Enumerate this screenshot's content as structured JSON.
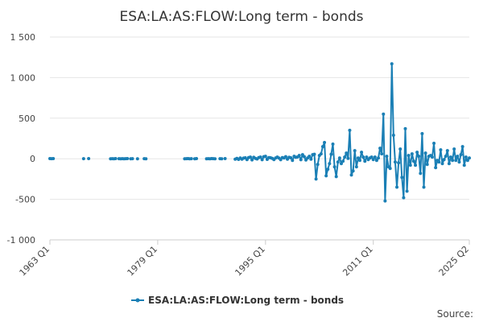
{
  "chart_data": {
    "type": "line",
    "title": "ESA:LA:AS:FLOW:Long term - bonds",
    "source_label": "Source:",
    "ylim": [
      -1000,
      1500
    ],
    "yticks": [
      1500,
      1000,
      500,
      0,
      -500,
      -1000
    ],
    "ytick_labels": [
      "1 500",
      "1 000",
      "500",
      "0",
      "-500",
      "-1 000"
    ],
    "xticks": [
      "1963 Q1",
      "1979 Q1",
      "1995 Q1",
      "2011 Q1",
      "2025 Q2"
    ],
    "x_range": [
      "1963 Q1",
      "2025 Q2"
    ],
    "grid": true,
    "legend_position": "bottom",
    "series_color": "#1a7fb5",
    "series": [
      {
        "name": "ESA:LA:AS:FLOW:Long term - bonds",
        "points": [
          [
            "1963 Q1",
            2
          ],
          [
            "1963 Q2",
            1
          ],
          [
            "1963 Q3",
            2
          ],
          [
            "1968 Q1",
            1
          ],
          [
            "1968 Q4",
            2
          ],
          [
            "1972 Q1",
            0
          ],
          [
            "1972 Q2",
            1
          ],
          [
            "1972 Q3",
            0
          ],
          [
            "1972 Q4",
            2
          ],
          [
            "1973 Q2",
            1
          ],
          [
            "1973 Q3",
            0
          ],
          [
            "1973 Q4",
            1
          ],
          [
            "1974 Q1",
            0
          ],
          [
            "1974 Q2",
            1
          ],
          [
            "1974 Q3",
            2
          ],
          [
            "1975 Q1",
            0
          ],
          [
            "1975 Q2",
            1
          ],
          [
            "1976 Q1",
            0
          ],
          [
            "1977 Q1",
            1
          ],
          [
            "1977 Q2",
            0
          ],
          [
            "1983 Q1",
            0
          ],
          [
            "1983 Q2",
            1
          ],
          [
            "1983 Q3",
            2
          ],
          [
            "1983 Q4",
            0
          ],
          [
            "1984 Q1",
            1
          ],
          [
            "1984 Q3",
            0
          ],
          [
            "1984 Q4",
            2
          ],
          [
            "1986 Q2",
            0
          ],
          [
            "1986 Q3",
            1
          ],
          [
            "1986 Q4",
            0
          ],
          [
            "1987 Q1",
            2
          ],
          [
            "1987 Q2",
            1
          ],
          [
            "1987 Q3",
            0
          ],
          [
            "1988 Q2",
            1
          ],
          [
            "1988 Q3",
            0
          ],
          [
            "1989 Q1",
            2
          ],
          [
            "1990 Q3",
            -5
          ],
          [
            "1990 Q4",
            5
          ],
          [
            "1991 Q1",
            -8
          ],
          [
            "1991 Q2",
            10
          ],
          [
            "1991 Q3",
            -6
          ],
          [
            "1991 Q4",
            8
          ],
          [
            "1992 Q1",
            12
          ],
          [
            "1992 Q2",
            -10
          ],
          [
            "1992 Q3",
            15
          ],
          [
            "1992 Q4",
            20
          ],
          [
            "1993 Q1",
            -14
          ],
          [
            "1993 Q2",
            18
          ],
          [
            "1993 Q3",
            5
          ],
          [
            "1993 Q4",
            -3
          ],
          [
            "1994 Q1",
            14
          ],
          [
            "1994 Q2",
            20
          ],
          [
            "1994 Q3",
            -12
          ],
          [
            "1994 Q4",
            25
          ],
          [
            "1995 Q1",
            30
          ],
          [
            "1995 Q2",
            -8
          ],
          [
            "1995 Q3",
            15
          ],
          [
            "1995 Q4",
            12
          ],
          [
            "1996 Q1",
            5
          ],
          [
            "1996 Q2",
            -10
          ],
          [
            "1996 Q3",
            10
          ],
          [
            "1996 Q4",
            20
          ],
          [
            "1997 Q1",
            8
          ],
          [
            "1997 Q2",
            -12
          ],
          [
            "1997 Q3",
            15
          ],
          [
            "1997 Q4",
            10
          ],
          [
            "1998 Q1",
            25
          ],
          [
            "1998 Q2",
            -5
          ],
          [
            "1998 Q3",
            18
          ],
          [
            "1998 Q4",
            12
          ],
          [
            "1999 Q1",
            -20
          ],
          [
            "1999 Q2",
            30
          ],
          [
            "1999 Q3",
            18
          ],
          [
            "1999 Q4",
            22
          ],
          [
            "2000 Q1",
            40
          ],
          [
            "2000 Q2",
            -12
          ],
          [
            "2000 Q3",
            50
          ],
          [
            "2000 Q4",
            25
          ],
          [
            "2001 Q1",
            -15
          ],
          [
            "2001 Q2",
            10
          ],
          [
            "2001 Q3",
            30
          ],
          [
            "2001 Q4",
            -5
          ],
          [
            "2002 Q1",
            50
          ],
          [
            "2002 Q2",
            55
          ],
          [
            "2002 Q3",
            -250
          ],
          [
            "2002 Q4",
            -70
          ],
          [
            "2003 Q1",
            40
          ],
          [
            "2003 Q2",
            60
          ],
          [
            "2003 Q3",
            150
          ],
          [
            "2003 Q4",
            200
          ],
          [
            "2004 Q1",
            -210
          ],
          [
            "2004 Q2",
            -130
          ],
          [
            "2004 Q3",
            -60
          ],
          [
            "2004 Q4",
            55
          ],
          [
            "2005 Q1",
            180
          ],
          [
            "2005 Q2",
            -100
          ],
          [
            "2005 Q3",
            -220
          ],
          [
            "2005 Q4",
            -40
          ],
          [
            "2006 Q1",
            10
          ],
          [
            "2006 Q2",
            -60
          ],
          [
            "2006 Q3",
            -30
          ],
          [
            "2006 Q4",
            20
          ],
          [
            "2007 Q1",
            70
          ],
          [
            "2007 Q2",
            5
          ],
          [
            "2007 Q3",
            350
          ],
          [
            "2007 Q4",
            -200
          ],
          [
            "2008 Q1",
            -150
          ],
          [
            "2008 Q2",
            100
          ],
          [
            "2008 Q3",
            -100
          ],
          [
            "2008 Q4",
            10
          ],
          [
            "2009 Q1",
            -20
          ],
          [
            "2009 Q2",
            80
          ],
          [
            "2009 Q3",
            20
          ],
          [
            "2009 Q4",
            -30
          ],
          [
            "2010 Q1",
            20
          ],
          [
            "2010 Q2",
            -10
          ],
          [
            "2010 Q3",
            10
          ],
          [
            "2010 Q4",
            20
          ],
          [
            "2011 Q1",
            -10
          ],
          [
            "2011 Q2",
            20
          ],
          [
            "2011 Q3",
            -20
          ],
          [
            "2011 Q4",
            10
          ],
          [
            "2012 Q1",
            130
          ],
          [
            "2012 Q2",
            60
          ],
          [
            "2012 Q3",
            550
          ],
          [
            "2012 Q4",
            -520
          ],
          [
            "2013 Q1",
            30
          ],
          [
            "2013 Q2",
            -100
          ],
          [
            "2013 Q3",
            -120
          ],
          [
            "2013 Q4",
            1170
          ],
          [
            "2014 Q1",
            290
          ],
          [
            "2014 Q2",
            -40
          ],
          [
            "2014 Q3",
            -350
          ],
          [
            "2014 Q4",
            -50
          ],
          [
            "2015 Q1",
            120
          ],
          [
            "2015 Q2",
            -230
          ],
          [
            "2015 Q3",
            -480
          ],
          [
            "2015 Q4",
            370
          ],
          [
            "2016 Q1",
            -400
          ],
          [
            "2016 Q2",
            40
          ],
          [
            "2016 Q3",
            -80
          ],
          [
            "2016 Q4",
            60
          ],
          [
            "2017 Q1",
            -30
          ],
          [
            "2017 Q2",
            -80
          ],
          [
            "2017 Q3",
            80
          ],
          [
            "2017 Q4",
            30
          ],
          [
            "2018 Q1",
            -180
          ],
          [
            "2018 Q2",
            310
          ],
          [
            "2018 Q3",
            -350
          ],
          [
            "2018 Q4",
            70
          ],
          [
            "2019 Q1",
            -70
          ],
          [
            "2019 Q2",
            30
          ],
          [
            "2019 Q3",
            40
          ],
          [
            "2019 Q4",
            20
          ],
          [
            "2020 Q1",
            190
          ],
          [
            "2020 Q2",
            -110
          ],
          [
            "2020 Q3",
            -20
          ],
          [
            "2020 Q4",
            -40
          ],
          [
            "2021 Q1",
            110
          ],
          [
            "2021 Q2",
            -60
          ],
          [
            "2021 Q3",
            -10
          ],
          [
            "2021 Q4",
            30
          ],
          [
            "2022 Q1",
            100
          ],
          [
            "2022 Q2",
            -60
          ],
          [
            "2022 Q3",
            20
          ],
          [
            "2022 Q4",
            -20
          ],
          [
            "2023 Q1",
            120
          ],
          [
            "2023 Q2",
            -20
          ],
          [
            "2023 Q3",
            30
          ],
          [
            "2023 Q4",
            -40
          ],
          [
            "2024 Q1",
            50
          ],
          [
            "2024 Q2",
            150
          ],
          [
            "2024 Q3",
            -80
          ],
          [
            "2024 Q4",
            20
          ],
          [
            "2025 Q1",
            -20
          ],
          [
            "2025 Q2",
            10
          ]
        ]
      }
    ]
  }
}
